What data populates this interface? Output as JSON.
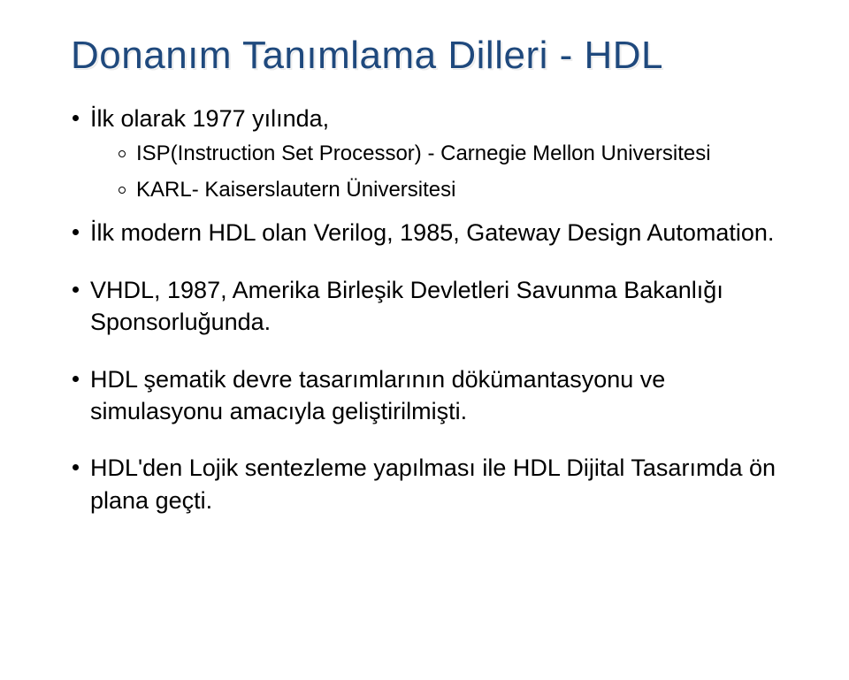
{
  "title": "Donanım Tanımlama Dilleri - HDL",
  "bullets": {
    "b1": {
      "text": "İlk olarak 1977 yılında,",
      "s1": "ISP(Instruction Set Processor) - Carnegie Mellon Universitesi",
      "s2": "KARL- Kaiserslautern Üniversitesi"
    },
    "b2": "İlk modern HDL olan Verilog, 1985, Gateway Design Automation.",
    "b3": "VHDL, 1987, Amerika Birleşik Devletleri Savunma Bakanlığı Sponsorluğunda.",
    "b4": "HDL şematik devre tasarımlarının dökümantasyonu ve simulasyonu amacıyla geliştirilmişti.",
    "b5": "HDL'den Lojik sentezleme yapılması ile HDL Dijital Tasarımda ön plana geçti."
  },
  "colors": {
    "title": "#1f497d",
    "body_text": "#000000",
    "background": "#ffffff"
  },
  "typography": {
    "title_fontsize": 44,
    "bullet_fontsize": 27,
    "subbullet_fontsize": 24
  }
}
